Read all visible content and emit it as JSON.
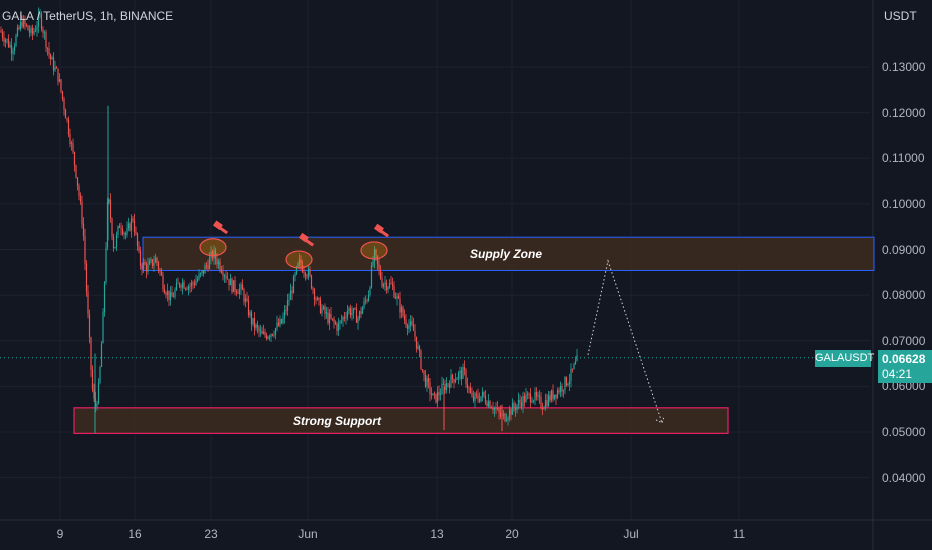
{
  "header": {
    "title": "GALA / TetherUS, 1h, BINANCE",
    "currency": "USDT"
  },
  "chart_data": {
    "type": "candlestick",
    "symbol": "GALAUSDT",
    "title": "GALA / TetherUS, 1h, BINANCE",
    "ylabel": "USDT",
    "ylim": [
      0.0355,
      0.143
    ],
    "y_ticks": [
      "0.13000",
      "0.12000",
      "0.11000",
      "0.10000",
      "0.09000",
      "0.08000",
      "0.07000",
      "0.06000",
      "0.05000",
      "0.04000"
    ],
    "y_tick_values": [
      0.13,
      0.12,
      0.11,
      0.1,
      0.09,
      0.08,
      0.07,
      0.06,
      0.05,
      0.04
    ],
    "x_ticks": [
      "9",
      "16",
      "23",
      "Jun",
      "13",
      "20",
      "Jul",
      "11"
    ],
    "last_price": "0.06628",
    "last_price_value": 0.06628,
    "countdown": "04:21",
    "price_path": [
      [
        0,
        0.138
      ],
      [
        12,
        0.134
      ],
      [
        22,
        0.14
      ],
      [
        32,
        0.137
      ],
      [
        40,
        0.141
      ],
      [
        50,
        0.132
      ],
      [
        58,
        0.128
      ],
      [
        68,
        0.117
      ],
      [
        76,
        0.107
      ],
      [
        83,
        0.095
      ],
      [
        88,
        0.075
      ],
      [
        92,
        0.06
      ],
      [
        95,
        0.055
      ],
      [
        99,
        0.06
      ],
      [
        103,
        0.075
      ],
      [
        108,
        0.102
      ],
      [
        114,
        0.09
      ],
      [
        120,
        0.096
      ],
      [
        126,
        0.093
      ],
      [
        133,
        0.097
      ],
      [
        140,
        0.087
      ],
      [
        148,
        0.086
      ],
      [
        156,
        0.088
      ],
      [
        164,
        0.082
      ],
      [
        171,
        0.079
      ],
      [
        180,
        0.083
      ],
      [
        190,
        0.082
      ],
      [
        200,
        0.084
      ],
      [
        213,
        0.089
      ],
      [
        222,
        0.086
      ],
      [
        232,
        0.082
      ],
      [
        242,
        0.081
      ],
      [
        252,
        0.074
      ],
      [
        262,
        0.071
      ],
      [
        272,
        0.072
      ],
      [
        282,
        0.074
      ],
      [
        290,
        0.08
      ],
      [
        299,
        0.087
      ],
      [
        308,
        0.085
      ],
      [
        318,
        0.078
      ],
      [
        328,
        0.075
      ],
      [
        338,
        0.073
      ],
      [
        348,
        0.077
      ],
      [
        358,
        0.075
      ],
      [
        368,
        0.08
      ],
      [
        374,
        0.089
      ],
      [
        382,
        0.083
      ],
      [
        392,
        0.082
      ],
      [
        404,
        0.075
      ],
      [
        414,
        0.072
      ],
      [
        424,
        0.062
      ],
      [
        434,
        0.057
      ],
      [
        444,
        0.06
      ],
      [
        454,
        0.062
      ],
      [
        464,
        0.063
      ],
      [
        472,
        0.057
      ],
      [
        482,
        0.058
      ],
      [
        492,
        0.056
      ],
      [
        502,
        0.053
      ],
      [
        512,
        0.055
      ],
      [
        522,
        0.057
      ],
      [
        532,
        0.058
      ],
      [
        542,
        0.056
      ],
      [
        552,
        0.058
      ],
      [
        562,
        0.06
      ],
      [
        570,
        0.062
      ],
      [
        578,
        0.066
      ]
    ],
    "supply_zone": {
      "label": "Supply Zone",
      "top": 0.0927,
      "bottom": 0.0854
    },
    "support_zone": {
      "label": "Strong Support",
      "top": 0.0553,
      "bottom": 0.0497
    },
    "rejection_marks": [
      {
        "x": 213,
        "price": 0.0905
      },
      {
        "x": 299,
        "price": 0.0878
      },
      {
        "x": 374,
        "price": 0.0898
      }
    ],
    "projection": [
      [
        588,
        0.0669
      ],
      [
        608,
        0.0875
      ],
      [
        662,
        0.052
      ]
    ]
  },
  "colors": {
    "bg": "#131722",
    "grid": "#1e222d",
    "up": "#26a69a",
    "down": "#ef5350",
    "supply_border": "#2962ff",
    "support_border": "#e91e63",
    "zone_fill": "#3e2c1e",
    "marker": "#ef5350",
    "badge": "#26a69a"
  }
}
